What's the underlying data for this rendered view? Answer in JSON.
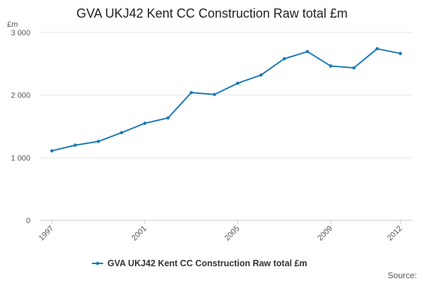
{
  "chart_data": {
    "type": "line",
    "title": "GVA UKJ42 Kent CC Construction Raw total £m",
    "ylabel": "£m",
    "xlabel": "",
    "x": [
      1997,
      1998,
      1999,
      2000,
      2001,
      2002,
      2003,
      2004,
      2005,
      2006,
      2007,
      2008,
      2009,
      2010,
      2011,
      2012
    ],
    "series": [
      {
        "name": "GVA UKJ42 Kent CC Construction Raw total £m",
        "color": "#1a7ab8",
        "values": [
          1110,
          1200,
          1260,
          1400,
          1550,
          1635,
          2040,
          2010,
          2190,
          2320,
          2580,
          2695,
          2465,
          2435,
          2740,
          2665
        ]
      }
    ],
    "ylim": [
      0,
      3000
    ],
    "yticks": [
      0,
      1000,
      2000,
      3000
    ],
    "ytick_labels": [
      "0",
      "1 000",
      "2 000",
      "3 000"
    ],
    "xticks": [
      1997,
      2001,
      2005,
      2009,
      2012
    ],
    "xtick_labels": [
      "1997",
      "2001",
      "2005",
      "2009",
      "2012"
    ],
    "grid": true,
    "legend_position": "bottom"
  },
  "source_label": "Source:"
}
